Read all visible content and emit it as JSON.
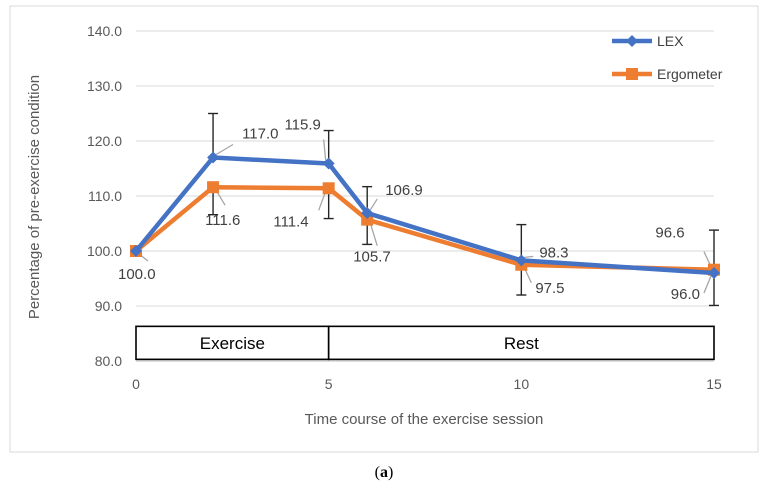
{
  "chart_data": {
    "type": "line",
    "title": "",
    "xlabel": "Time course of the exercise session",
    "ylabel": "Percentage of pre-exercise condition",
    "xlim": [
      0,
      15
    ],
    "ylim": [
      80,
      140
    ],
    "x_ticks": [
      "0",
      "5",
      "10",
      "15"
    ],
    "y_ticks": [
      "80.0",
      "90.0",
      "100.0",
      "110.0",
      "120.0",
      "130.0",
      "140.0"
    ],
    "grid": true,
    "legend_position": "top-right",
    "series": [
      {
        "name": "LEX",
        "color": "#4472c4",
        "marker": "diamond",
        "x": [
          0,
          2,
          5,
          6,
          10,
          15
        ],
        "values": [
          100.0,
          117.0,
          115.9,
          106.9,
          98.3,
          96.0
        ],
        "labels": [
          "100.0",
          "117.0",
          "115.9",
          "106.9",
          "98.3",
          "96.0"
        ],
        "error": [
          0,
          8,
          6,
          4.8,
          6.5,
          7.8
        ]
      },
      {
        "name": "Ergometer",
        "color": "#ed7d31",
        "marker": "square",
        "x": [
          0,
          2,
          5,
          6,
          10,
          15
        ],
        "values": [
          100.0,
          111.6,
          111.4,
          105.7,
          97.5,
          96.6
        ],
        "labels": [
          "",
          "111.6",
          "111.4",
          "105.7",
          "97.5",
          "96.6"
        ],
        "error": [
          0,
          5,
          5.5,
          4.5,
          5.5,
          6.5
        ]
      }
    ],
    "phases": [
      {
        "label": "Exercise",
        "from": 0,
        "to": 5
      },
      {
        "label": "Rest",
        "from": 5,
        "to": 15
      }
    ],
    "caption_prefix": "(",
    "caption_bold": "a",
    "caption_suffix": ")"
  }
}
